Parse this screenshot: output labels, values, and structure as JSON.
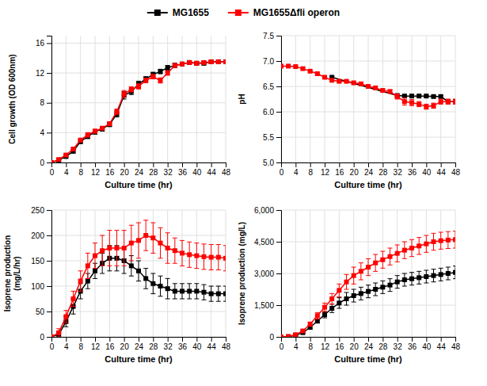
{
  "chart_data": [
    {
      "type": "line",
      "xlabel": "Culture time (hr)",
      "ylabel": "Cell growth (OD 600nm)",
      "x": [
        0,
        2,
        4,
        6,
        8,
        10,
        12,
        14,
        16,
        18,
        20,
        22,
        24,
        26,
        28,
        30,
        32,
        34,
        36,
        38,
        40,
        42,
        44,
        46,
        48
      ],
      "series": [
        {
          "name": "MG1655",
          "color": "#000000",
          "marker": "square",
          "values": [
            0,
            0.3,
            0.8,
            1.5,
            2.8,
            3.5,
            4.1,
            4.5,
            5.1,
            6.5,
            9.0,
            9.5,
            10.5,
            11.2,
            11.8,
            12.2,
            12.7,
            13.0,
            13.2,
            13.4,
            13.3,
            13.3,
            13.5,
            13.5,
            13.5
          ],
          "errors": [
            0,
            0.1,
            0.15,
            0.2,
            0.25,
            0.3,
            0.3,
            0.3,
            0.3,
            0.4,
            0.5,
            0.4,
            0.4,
            0.3,
            0.3,
            0.3,
            0.3,
            0.3,
            0.2,
            0.2,
            0.2,
            0.2,
            0.2,
            0.2,
            0.2
          ]
        },
        {
          "name": "MG1655Δfli operon",
          "color": "#ff0000",
          "marker": "square",
          "values": [
            0,
            0.4,
            1.0,
            1.8,
            3.0,
            3.7,
            4.2,
            4.6,
            5.2,
            6.8,
            9.2,
            9.8,
            10.2,
            11.0,
            11.5,
            11.0,
            12.0,
            13.0,
            13.2,
            13.4,
            13.3,
            13.4,
            13.5,
            13.5,
            13.5
          ],
          "errors": [
            0,
            0.1,
            0.15,
            0.2,
            0.25,
            0.3,
            0.25,
            0.2,
            0.25,
            0.35,
            0.45,
            0.35,
            0.35,
            0.3,
            0.3,
            0.35,
            0.3,
            0.25,
            0.2,
            0.2,
            0.2,
            0.2,
            0.2,
            0.2,
            0.2
          ]
        }
      ],
      "xlim": [
        0,
        48
      ],
      "xticks": [
        0,
        4,
        8,
        12,
        16,
        20,
        24,
        28,
        32,
        36,
        40,
        44,
        48
      ],
      "ylim": [
        0,
        17
      ],
      "yticks": [
        0,
        4,
        8,
        12,
        16
      ],
      "grid": true,
      "legend": "top"
    },
    {
      "type": "line",
      "xlabel": "Culture time (hr)",
      "ylabel": "pH",
      "series": [
        {
          "color": "#000000",
          "marker": "square",
          "x": [
            14,
            32,
            34,
            36,
            38,
            40,
            42,
            44,
            46,
            48
          ],
          "values": [
            6.68,
            6.32,
            6.31,
            6.31,
            6.31,
            6.31,
            6.3,
            6.3,
            6.2,
            6.2
          ],
          "errors": [
            0.02,
            0.02,
            0.02,
            0.02,
            0.02,
            0.02,
            0.02,
            0.02,
            0.02,
            0.02
          ]
        },
        {
          "color": "#ff0000",
          "marker": "square",
          "x": [
            0,
            2,
            4,
            6,
            8,
            10,
            12,
            14,
            16,
            18,
            20,
            22,
            24,
            26,
            28,
            30,
            32,
            34,
            36,
            38,
            40,
            42,
            44,
            46,
            48
          ],
          "values": [
            6.9,
            6.9,
            6.89,
            6.85,
            6.8,
            6.75,
            6.68,
            6.62,
            6.6,
            6.6,
            6.57,
            6.55,
            6.5,
            6.47,
            6.42,
            6.4,
            6.3,
            6.2,
            6.18,
            6.15,
            6.1,
            6.12,
            6.2,
            6.2,
            6.2
          ],
          "errors": [
            0.02,
            0.02,
            0.02,
            0.02,
            0.02,
            0.02,
            0.02,
            0.02,
            0.02,
            0.02,
            0.02,
            0.02,
            0.03,
            0.03,
            0.03,
            0.03,
            0.05,
            0.07,
            0.06,
            0.05,
            0.05,
            0.05,
            0.05,
            0.05,
            0.05
          ]
        }
      ],
      "xlim": [
        0,
        48
      ],
      "xticks": [
        0,
        4,
        8,
        12,
        16,
        20,
        24,
        28,
        32,
        36,
        40,
        44,
        48
      ],
      "ylim": [
        5.0,
        7.5
      ],
      "yticks": [
        {
          "value": 5.0,
          "label": "5.0"
        },
        5.5,
        {
          "value": 6.0,
          "label": "6.0"
        },
        6.5,
        {
          "value": 7.0,
          "label": "7.0"
        },
        7.5
      ],
      "grid": true
    },
    {
      "type": "line",
      "xlabel": "Culture time (hr)",
      "ylabel": "Isoprene production\n(mg/L/hr)",
      "x": [
        0,
        2,
        4,
        6,
        8,
        10,
        12,
        14,
        16,
        18,
        20,
        22,
        24,
        26,
        28,
        30,
        32,
        34,
        36,
        38,
        40,
        42,
        44,
        46,
        48
      ],
      "series": [
        {
          "color": "#000000",
          "marker": "square",
          "values": [
            0,
            5,
            30,
            60,
            90,
            110,
            130,
            145,
            155,
            155,
            150,
            140,
            130,
            115,
            105,
            100,
            95,
            90,
            90,
            90,
            90,
            88,
            85,
            85,
            85
          ],
          "errors": [
            0,
            5,
            10,
            15,
            15,
            15,
            15,
            20,
            25,
            25,
            25,
            20,
            20,
            20,
            20,
            20,
            20,
            15,
            15,
            15,
            15,
            15,
            15,
            15,
            15
          ]
        },
        {
          "color": "#ff0000",
          "marker": "square",
          "values": [
            0,
            8,
            40,
            75,
            110,
            140,
            160,
            170,
            175,
            175,
            175,
            185,
            190,
            200,
            195,
            185,
            175,
            170,
            165,
            162,
            160,
            158,
            157,
            157,
            155
          ],
          "errors": [
            0,
            8,
            12,
            15,
            20,
            25,
            25,
            30,
            35,
            35,
            35,
            35,
            35,
            30,
            30,
            30,
            30,
            25,
            25,
            25,
            25,
            25,
            25,
            25,
            25
          ]
        }
      ],
      "xlim": [
        0,
        48
      ],
      "xticks": [
        0,
        4,
        8,
        12,
        16,
        20,
        24,
        28,
        32,
        36,
        40,
        44,
        48
      ],
      "ylim": [
        0,
        250
      ],
      "yticks": [
        0,
        50,
        100,
        150,
        200,
        250
      ],
      "grid": true
    },
    {
      "type": "line",
      "xlabel": "Culture time (hr)",
      "ylabel": "Isoprene production (mg/L)",
      "x": [
        0,
        2,
        4,
        6,
        8,
        10,
        12,
        14,
        16,
        18,
        20,
        22,
        24,
        26,
        28,
        30,
        32,
        34,
        36,
        38,
        40,
        42,
        44,
        46,
        48
      ],
      "series": [
        {
          "color": "#000000",
          "marker": "square",
          "values": [
            0,
            10,
            80,
            200,
            450,
            750,
            1050,
            1350,
            1600,
            1800,
            1950,
            2050,
            2150,
            2250,
            2350,
            2450,
            2600,
            2700,
            2750,
            2800,
            2850,
            2900,
            2950,
            3000,
            3050
          ],
          "errors": [
            0,
            10,
            30,
            50,
            80,
            100,
            150,
            200,
            250,
            300,
            300,
            300,
            300,
            300,
            300,
            300,
            300,
            300,
            300,
            300,
            300,
            300,
            300,
            300,
            300
          ]
        },
        {
          "color": "#ff0000",
          "marker": "square",
          "values": [
            0,
            15,
            100,
            280,
            600,
            1000,
            1400,
            1800,
            2200,
            2600,
            2900,
            3100,
            3300,
            3500,
            3650,
            3800,
            3950,
            4100,
            4200,
            4300,
            4400,
            4500,
            4550,
            4580,
            4600
          ],
          "errors": [
            0,
            15,
            40,
            70,
            100,
            150,
            200,
            250,
            300,
            350,
            400,
            400,
            400,
            400,
            400,
            400,
            400,
            400,
            400,
            400,
            400,
            400,
            400,
            400,
            400
          ]
        }
      ],
      "xlim": [
        0,
        48
      ],
      "xticks": [
        0,
        4,
        8,
        12,
        16,
        20,
        24,
        28,
        32,
        36,
        40,
        44,
        48
      ],
      "ylim": [
        0,
        6000
      ],
      "yticks": [
        0,
        {
          "value": 1500,
          "label": "1,500"
        },
        {
          "value": 3000,
          "label": "3,000"
        },
        {
          "value": 4500,
          "label": "4,500"
        },
        {
          "value": 6000,
          "label": "6,000"
        }
      ],
      "grid": true
    }
  ]
}
